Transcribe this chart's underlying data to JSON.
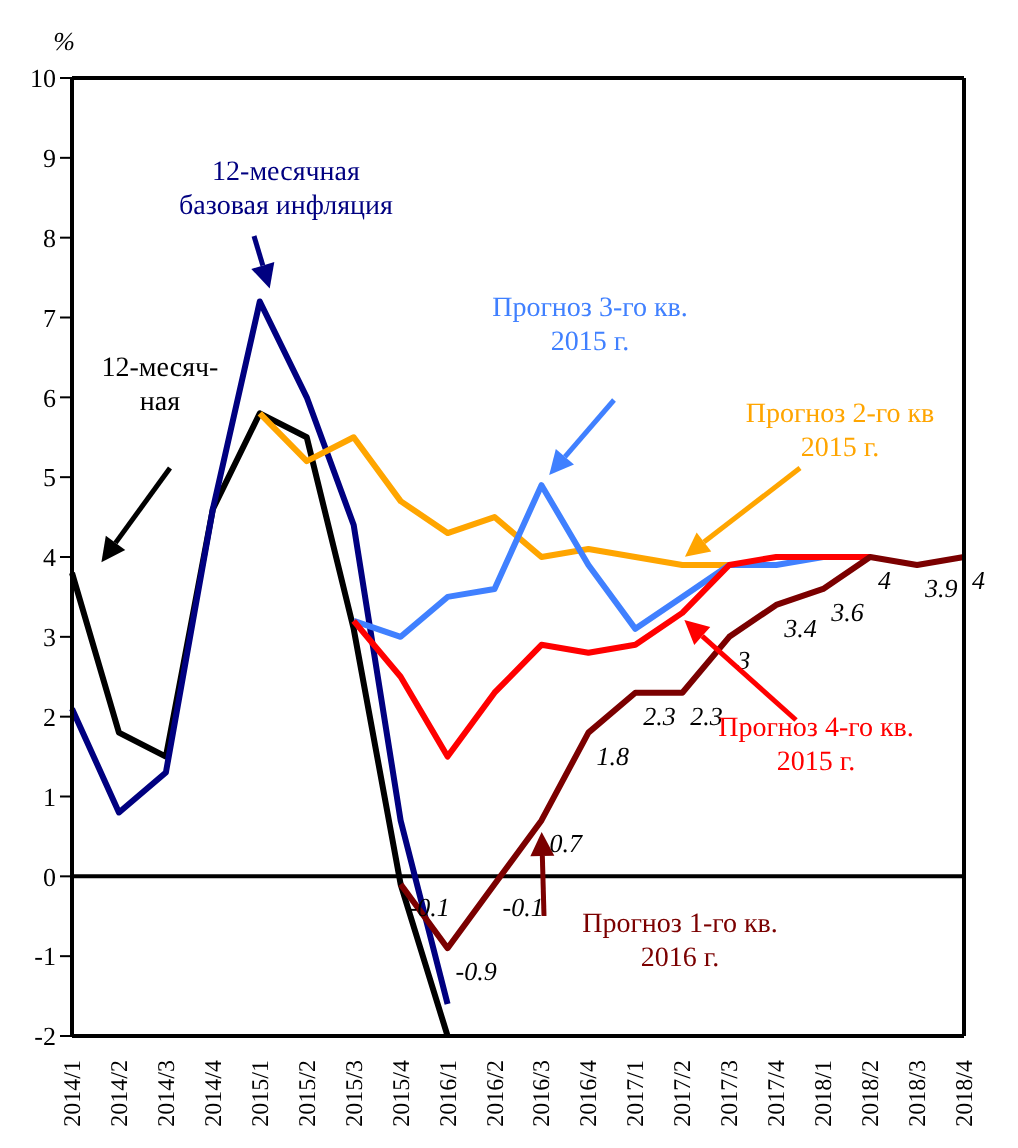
{
  "chart_data": {
    "type": "line",
    "ylabel": "%",
    "categories": [
      "2014/1",
      "2014/2",
      "2014/3",
      "2014/4",
      "2015/1",
      "2015/2",
      "2015/3",
      "2015/4",
      "2016/1",
      "2016/2",
      "2016/3",
      "2016/4",
      "2017/1",
      "2017/2",
      "2017/3",
      "2017/4",
      "2018/1",
      "2018/2",
      "2018/3",
      "2018/4"
    ],
    "series": [
      {
        "name": "12-месяч-\nная",
        "color": "#000000",
        "values": [
          3.8,
          1.8,
          1.5,
          4.6,
          5.8,
          5.5,
          3.1,
          -0.1,
          -2,
          null,
          null,
          null,
          null,
          null,
          null,
          null,
          null,
          null,
          null,
          null
        ]
      },
      {
        "name": "12-месячная\nбазовая инфляция",
        "color": "#000080",
        "values": [
          2.1,
          0.8,
          1.3,
          4.6,
          7.2,
          6.0,
          4.4,
          0.7,
          -1.6,
          null,
          null,
          null,
          null,
          null,
          null,
          null,
          null,
          null,
          null,
          null
        ]
      },
      {
        "name": "Прогноз 2-го кв\n2015 г.",
        "color": "#ffa500",
        "values": [
          null,
          null,
          null,
          null,
          5.8,
          5.2,
          5.5,
          4.7,
          4.3,
          4.5,
          4.0,
          4.1,
          4.0,
          3.9,
          3.9,
          null,
          null,
          null,
          null,
          null
        ]
      },
      {
        "name": "Прогноз 3-го кв.\n2015 г.",
        "color": "#4080ff",
        "values": [
          null,
          null,
          null,
          null,
          null,
          null,
          3.2,
          3.0,
          3.5,
          3.6,
          4.9,
          3.9,
          3.1,
          3.5,
          3.9,
          3.9,
          4.0,
          null,
          null,
          null
        ]
      },
      {
        "name": "Прогноз 4-го кв.\n2015 г.",
        "color": "#ff0000",
        "values": [
          null,
          null,
          null,
          null,
          null,
          null,
          3.2,
          2.5,
          1.5,
          2.3,
          2.9,
          2.8,
          2.9,
          3.3,
          3.9,
          4.0,
          4.0,
          4.0,
          null,
          null
        ]
      },
      {
        "name": "Прогноз 1-го кв.\n2016 г.",
        "color": "#7b0000",
        "values": [
          null,
          null,
          null,
          null,
          null,
          null,
          null,
          -0.1,
          -0.9,
          -0.1,
          0.7,
          1.8,
          2.3,
          2.3,
          3,
          3.4,
          3.6,
          4,
          3.9,
          4
        ],
        "value_labels": [
          null,
          null,
          null,
          null,
          null,
          null,
          null,
          "-0.1",
          "-0.9",
          "-0.1",
          "0.7",
          "1.8",
          "2.3",
          "2.3",
          "3",
          "3.4",
          "3.6",
          "4",
          "3.9",
          "4"
        ]
      }
    ],
    "ylim": [
      -2,
      10
    ],
    "yticks": [
      -2,
      -1,
      0,
      1,
      2,
      3,
      4,
      5,
      6,
      7,
      8,
      9,
      10
    ],
    "ref_lines": [
      {
        "axis": "y",
        "value": 0,
        "color": "#000000"
      }
    ],
    "marker": "none",
    "line_style": "solid"
  }
}
